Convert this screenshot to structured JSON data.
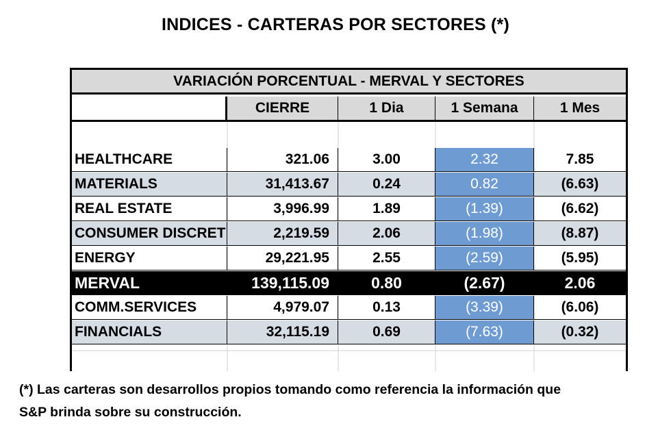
{
  "title": "INDICES - CARTERAS POR SECTORES (*)",
  "table": {
    "banner": "VARIACIÓN PORCENTUAL - MERVAL Y SECTORES",
    "columns": [
      "",
      "CIERRE",
      "1 Dia",
      "1 Semana",
      "1 Mes"
    ],
    "rows": [
      {
        "name": "HEALTHCARE",
        "cierre": "321.06",
        "dia": "3.00",
        "semana": "2.32",
        "mes": "7.85",
        "style": "plain"
      },
      {
        "name": "MATERIALS",
        "cierre": "31,413.67",
        "dia": "0.24",
        "semana": "0.82",
        "mes": "(6.63)",
        "style": "shaded"
      },
      {
        "name": "REAL ESTATE",
        "cierre": "3,996.99",
        "dia": "1.89",
        "semana": "(1.39)",
        "mes": "(6.62)",
        "style": "plain"
      },
      {
        "name": "CONSUMER DISCRET",
        "cierre": "2,219.59",
        "dia": "2.06",
        "semana": "(1.98)",
        "mes": "(8.87)",
        "style": "shaded"
      },
      {
        "name": "ENERGY",
        "cierre": "29,221.95",
        "dia": "2.55",
        "semana": "(2.59)",
        "mes": "(5.95)",
        "style": "plain"
      },
      {
        "name": "MERVAL",
        "cierre": "139,115.09",
        "dia": "0.80",
        "semana": "(2.67)",
        "mes": "2.06",
        "style": "dark"
      },
      {
        "name": "COMM.SERVICES",
        "cierre": "4,979.07",
        "dia": "0.13",
        "semana": "(3.39)",
        "mes": "(6.06)",
        "style": "plain"
      },
      {
        "name": "FINANCIALS",
        "cierre": "32,115.19",
        "dia": "0.69",
        "semana": "(7.63)",
        "mes": "(0.32)",
        "style": "shaded"
      }
    ],
    "colors": {
      "header_bg": "#d9d9d9",
      "shaded_bg": "#d6dce4",
      "highlight_bg": "#6f9bd3",
      "merval_bg": "#000000"
    }
  },
  "footnote": {
    "line1": "(*) Las carteras son desarrollos propios tomando como referencia la información que",
    "line2": "S&P brinda sobre su construcción."
  }
}
